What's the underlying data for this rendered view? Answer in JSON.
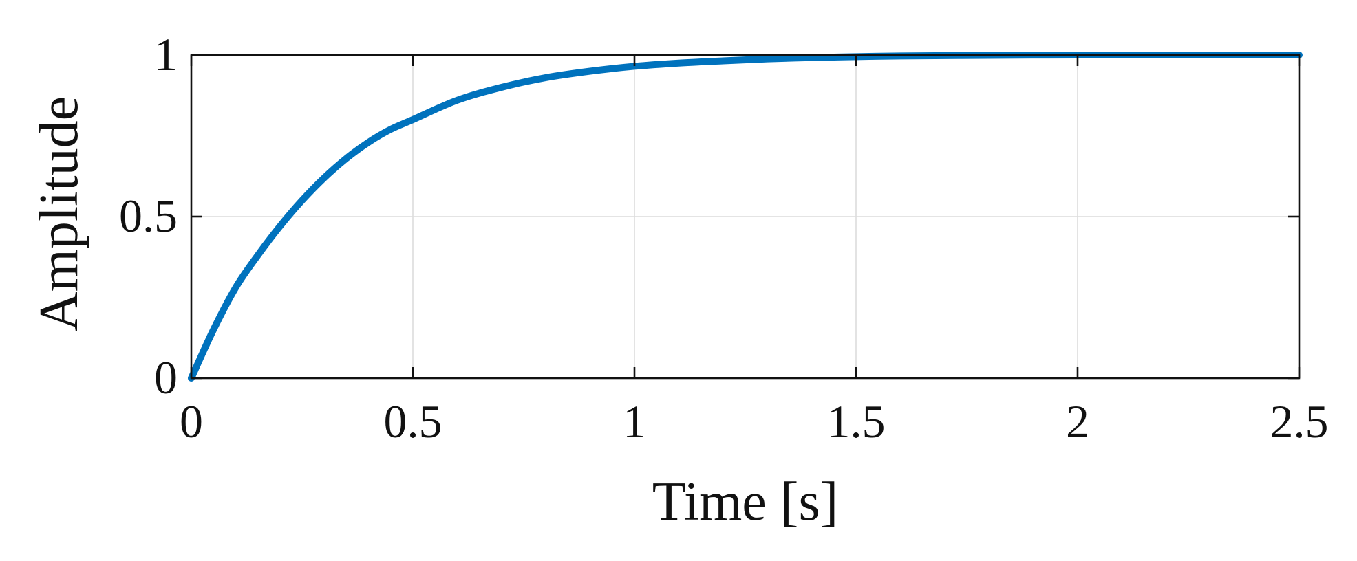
{
  "chart_data": {
    "type": "line",
    "xlabel": "Time [s]",
    "ylabel": "Amplitude",
    "xlim": [
      0,
      2.5
    ],
    "ylim": [
      0,
      1
    ],
    "x_ticks": [
      "0",
      "0.5",
      "1",
      "1.5",
      "2",
      "2.5"
    ],
    "y_ticks": [
      "0",
      "0.5",
      "1"
    ],
    "grid": true,
    "reference_line": {
      "y": 1,
      "style": "dotted"
    },
    "series": [
      {
        "color": "#0072bd",
        "x": [
          0,
          0.05,
          0.1,
          0.15,
          0.2,
          0.25,
          0.3,
          0.35,
          0.4,
          0.45,
          0.5,
          0.6,
          0.7,
          0.8,
          0.9,
          1.0,
          1.1,
          1.2,
          1.3,
          1.4,
          1.5,
          1.6,
          1.8,
          2.0,
          2.2,
          2.5
        ],
        "y": [
          0,
          0.15,
          0.28,
          0.38,
          0.47,
          0.55,
          0.62,
          0.68,
          0.73,
          0.77,
          0.8,
          0.86,
          0.9,
          0.93,
          0.95,
          0.965,
          0.975,
          0.982,
          0.988,
          0.992,
          0.995,
          0.997,
          0.999,
          1.0,
          1.0,
          1.0
        ]
      }
    ]
  }
}
